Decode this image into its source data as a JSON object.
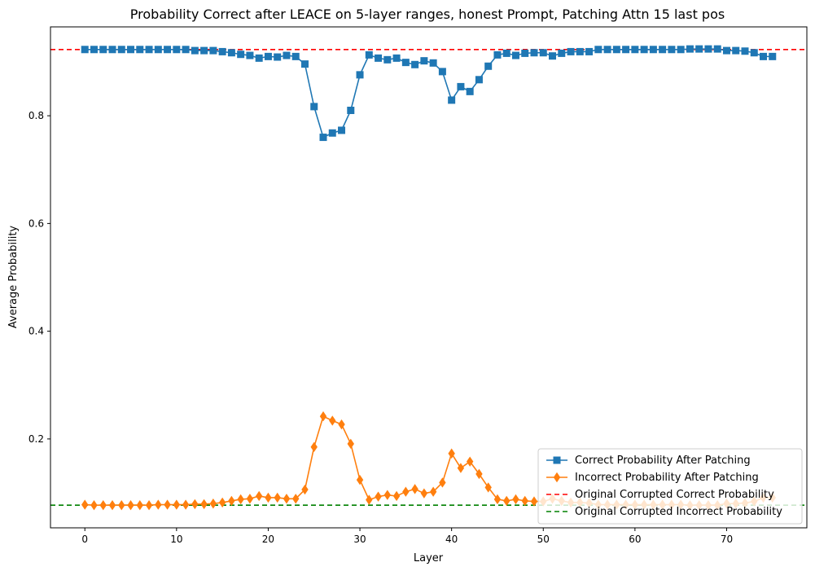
{
  "chart_data": {
    "type": "line",
    "title": "Probability Correct after LEACE on 5-layer ranges, honest Prompt, Patching Attn 15 last pos",
    "xlabel": "Layer",
    "ylabel": "Average Probability",
    "xlim": [
      -3.75,
      78.75
    ],
    "ylim": [
      0.035,
      0.965
    ],
    "x_ticks": [
      0,
      10,
      20,
      30,
      40,
      50,
      60,
      70
    ],
    "y_ticks": [
      0.2,
      0.4,
      0.6,
      0.8
    ],
    "grid": false,
    "legend_position": "lower-right",
    "x": [
      0,
      1,
      2,
      3,
      4,
      5,
      6,
      7,
      8,
      9,
      10,
      11,
      12,
      13,
      14,
      15,
      16,
      17,
      18,
      19,
      20,
      21,
      22,
      23,
      24,
      25,
      26,
      27,
      28,
      29,
      30,
      31,
      32,
      33,
      34,
      35,
      36,
      37,
      38,
      39,
      40,
      41,
      42,
      43,
      44,
      45,
      46,
      47,
      48,
      49,
      50,
      51,
      52,
      53,
      54,
      55,
      56,
      57,
      58,
      59,
      60,
      61,
      62,
      63,
      64,
      65,
      66,
      67,
      68,
      69,
      70,
      71,
      72,
      73,
      74,
      75
    ],
    "series": [
      {
        "name": "Correct Probability After Patching",
        "color": "#1f77b4",
        "marker": "square",
        "values": [
          0.923,
          0.923,
          0.923,
          0.923,
          0.923,
          0.923,
          0.923,
          0.923,
          0.923,
          0.923,
          0.923,
          0.923,
          0.921,
          0.921,
          0.921,
          0.919,
          0.917,
          0.914,
          0.912,
          0.907,
          0.91,
          0.909,
          0.912,
          0.91,
          0.896,
          0.817,
          0.76,
          0.768,
          0.773,
          0.81,
          0.876,
          0.913,
          0.907,
          0.904,
          0.907,
          0.899,
          0.895,
          0.902,
          0.898,
          0.882,
          0.829,
          0.854,
          0.845,
          0.867,
          0.892,
          0.913,
          0.916,
          0.912,
          0.916,
          0.917,
          0.917,
          0.911,
          0.916,
          0.919,
          0.919,
          0.919,
          0.923,
          0.923,
          0.923,
          0.923,
          0.923,
          0.923,
          0.923,
          0.923,
          0.923,
          0.923,
          0.924,
          0.924,
          0.924,
          0.924,
          0.921,
          0.921,
          0.92,
          0.917,
          0.91,
          0.91
        ]
      },
      {
        "name": "Incorrect Probability After Patching",
        "color": "#ff7f0e",
        "marker": "diamond",
        "values": [
          0.078,
          0.077,
          0.077,
          0.077,
          0.077,
          0.077,
          0.077,
          0.077,
          0.078,
          0.078,
          0.078,
          0.078,
          0.079,
          0.079,
          0.08,
          0.082,
          0.085,
          0.088,
          0.089,
          0.094,
          0.091,
          0.091,
          0.089,
          0.089,
          0.106,
          0.185,
          0.242,
          0.234,
          0.227,
          0.191,
          0.124,
          0.087,
          0.093,
          0.096,
          0.094,
          0.102,
          0.107,
          0.099,
          0.102,
          0.119,
          0.173,
          0.146,
          0.158,
          0.135,
          0.11,
          0.088,
          0.085,
          0.088,
          0.085,
          0.084,
          0.084,
          0.089,
          0.085,
          0.082,
          0.082,
          0.081,
          0.078,
          0.078,
          0.078,
          0.078,
          0.078,
          0.078,
          0.078,
          0.078,
          0.078,
          0.078,
          0.077,
          0.077,
          0.077,
          0.077,
          0.08,
          0.08,
          0.081,
          0.084,
          0.091,
          0.091
        ]
      }
    ],
    "reference_lines": [
      {
        "name": "Original Corrupted Correct Probability",
        "value": 0.923,
        "color": "#ff0000",
        "style": "dashed"
      },
      {
        "name": "Original Corrupted Incorrect Probability",
        "value": 0.077,
        "color": "#008000",
        "style": "dashed"
      }
    ]
  }
}
